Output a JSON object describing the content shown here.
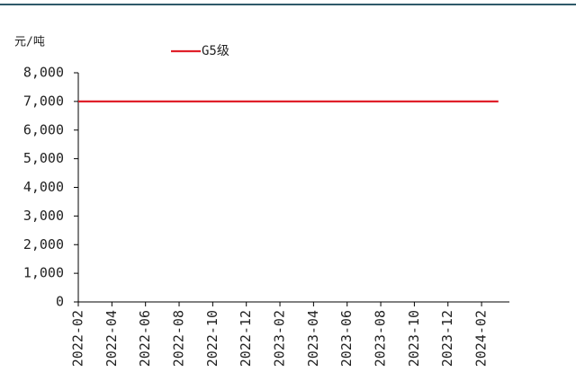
{
  "chart_data": {
    "type": "line",
    "y_unit": "元/吨",
    "categories": [
      "2022-02",
      null,
      "2022-04",
      null,
      "2022-06",
      null,
      "2022-08",
      null,
      "2022-10",
      null,
      "2022-12",
      null,
      "2023-02",
      null,
      "2023-04",
      null,
      "2023-06",
      null,
      "2023-08",
      null,
      "2023-10",
      null,
      "2023-12",
      null,
      "2024-02",
      null
    ],
    "series": [
      {
        "name": "G5级",
        "color": "#e0202a",
        "values": [
          7000,
          7000,
          7000,
          7000,
          7000,
          7000,
          7000,
          7000,
          7000,
          7000,
          7000,
          7000,
          7000,
          7000,
          7000,
          7000,
          7000,
          7000,
          7000,
          7000,
          7000,
          7000,
          7000,
          7000,
          7000,
          7000
        ]
      }
    ],
    "ylim": [
      0,
      8000
    ],
    "yticks": [
      0,
      {
        "value": 1000,
        "label": "1,000"
      },
      {
        "value": 2000,
        "label": "2,000"
      },
      {
        "value": 3000,
        "label": "3,000"
      },
      {
        "value": 4000,
        "label": "4,000"
      },
      {
        "value": 5000,
        "label": "5,000"
      },
      {
        "value": 6000,
        "label": "6,000"
      },
      {
        "value": 7000,
        "label": "7,000"
      },
      {
        "value": 8000,
        "label": "8,000"
      }
    ],
    "legend": "top"
  }
}
